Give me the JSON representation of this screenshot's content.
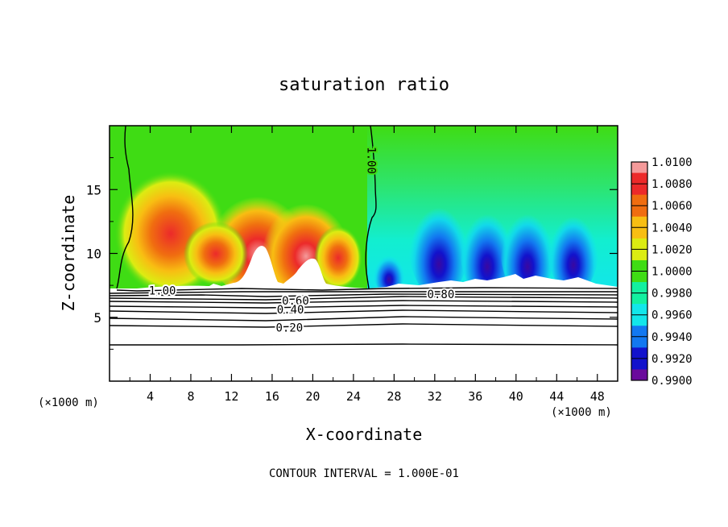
{
  "chart_data": {
    "type": "heatmap",
    "title": "saturation ratio",
    "xlabel": "X-coordinate",
    "ylabel": "Z-coordinate",
    "x_unit": "(×1000 m)",
    "z_unit": "(×1000 m)",
    "xlim": [
      0,
      50
    ],
    "ylim": [
      0,
      20
    ],
    "x_ticks": [
      "4",
      "8",
      "12",
      "16",
      "20",
      "24",
      "28",
      "32",
      "36",
      "40",
      "44",
      "48"
    ],
    "y_ticks": [
      "5",
      "10",
      "15"
    ],
    "colorbar": {
      "labels": [
        "1.0100",
        "1.0080",
        "1.0060",
        "1.0040",
        "1.0020",
        "1.0000",
        "0.9980",
        "0.9960",
        "0.9940",
        "0.9920",
        "0.9900"
      ],
      "colors": [
        "#f49a9a",
        "#ec2a2a",
        "#f06d10",
        "#f8be12",
        "#dcec12",
        "#3fdc14",
        "#12f0a0",
        "#12e6ea",
        "#1278f0",
        "#1212cc",
        "#6a0a9c"
      ]
    },
    "field_regions": [
      {
        "region": "upper-left",
        "x": [
          0,
          26
        ],
        "z": [
          7.5,
          20
        ],
        "value_range": [
          1.0,
          1.0085
        ]
      },
      {
        "region": "upper-right",
        "x": [
          26,
          50
        ],
        "z": [
          7.5,
          20
        ],
        "value_range": [
          0.9905,
          1.0
        ]
      }
    ],
    "contour_labels": [
      {
        "text": "1.00",
        "x": 25.4,
        "z": 17.6,
        "rotated": true
      },
      {
        "text": "1.00",
        "x": 5.2,
        "z": 7.1
      },
      {
        "text": "0.80",
        "x": 32.6,
        "z": 6.8
      },
      {
        "text": "0.60",
        "x": 18.3,
        "z": 6.3
      },
      {
        "text": "0.40",
        "x": 17.8,
        "z": 5.6
      },
      {
        "text": "0.20",
        "x": 17.7,
        "z": 4.2
      }
    ],
    "lower_contour_levels_z": [
      7.2,
      6.9,
      6.6,
      6.3,
      6.0,
      5.7,
      5.3,
      4.8,
      4.3,
      3.0
    ],
    "contour_interval": "CONTOUR INTERVAL = 1.000E-01"
  }
}
